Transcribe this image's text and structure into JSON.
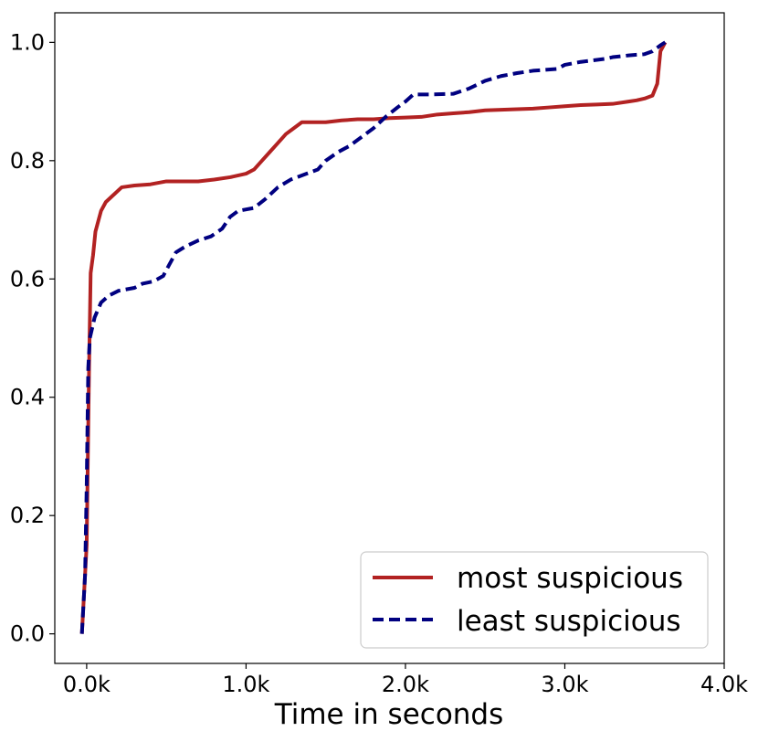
{
  "chart_data": {
    "type": "line",
    "title": "",
    "xlabel": "Time in seconds",
    "ylabel": "",
    "xlim": [
      -200,
      4000
    ],
    "ylim": [
      -0.05,
      1.05
    ],
    "x_ticks": [
      0,
      1000,
      2000,
      3000,
      4000
    ],
    "x_tick_labels": [
      "0.0k",
      "1.0k",
      "2.0k",
      "3.0k",
      "4.0k"
    ],
    "y_ticks": [
      0.0,
      0.2,
      0.4,
      0.6,
      0.8,
      1.0
    ],
    "y_tick_labels": [
      "0.0",
      "0.2",
      "0.4",
      "0.6",
      "0.8",
      "1.0"
    ],
    "grid": false,
    "legend_position": "lower-right",
    "series": [
      {
        "name": "most suspicious",
        "color": "#b22222",
        "dash": "solid",
        "points": [
          [
            -30,
            0.0
          ],
          [
            0,
            0.15
          ],
          [
            15,
            0.45
          ],
          [
            25,
            0.61
          ],
          [
            40,
            0.64
          ],
          [
            55,
            0.68
          ],
          [
            70,
            0.695
          ],
          [
            90,
            0.715
          ],
          [
            120,
            0.73
          ],
          [
            160,
            0.74
          ],
          [
            220,
            0.755
          ],
          [
            300,
            0.758
          ],
          [
            400,
            0.76
          ],
          [
            500,
            0.765
          ],
          [
            600,
            0.765
          ],
          [
            700,
            0.765
          ],
          [
            800,
            0.768
          ],
          [
            900,
            0.772
          ],
          [
            1000,
            0.778
          ],
          [
            1050,
            0.785
          ],
          [
            1100,
            0.8
          ],
          [
            1150,
            0.815
          ],
          [
            1200,
            0.83
          ],
          [
            1250,
            0.845
          ],
          [
            1300,
            0.855
          ],
          [
            1350,
            0.865
          ],
          [
            1400,
            0.865
          ],
          [
            1500,
            0.865
          ],
          [
            1600,
            0.868
          ],
          [
            1700,
            0.87
          ],
          [
            1800,
            0.87
          ],
          [
            1900,
            0.872
          ],
          [
            2000,
            0.873
          ],
          [
            2100,
            0.874
          ],
          [
            2200,
            0.878
          ],
          [
            2300,
            0.88
          ],
          [
            2400,
            0.882
          ],
          [
            2500,
            0.885
          ],
          [
            2600,
            0.886
          ],
          [
            2700,
            0.887
          ],
          [
            2800,
            0.888
          ],
          [
            2900,
            0.89
          ],
          [
            3000,
            0.892
          ],
          [
            3100,
            0.894
          ],
          [
            3200,
            0.895
          ],
          [
            3300,
            0.896
          ],
          [
            3400,
            0.9
          ],
          [
            3450,
            0.902
          ],
          [
            3500,
            0.905
          ],
          [
            3550,
            0.91
          ],
          [
            3580,
            0.93
          ],
          [
            3600,
            0.985
          ],
          [
            3630,
            1.0
          ]
        ]
      },
      {
        "name": "least suspicious",
        "color": "#000080",
        "dash": "dashed",
        "points": [
          [
            -30,
            0.0
          ],
          [
            -10,
            0.1
          ],
          [
            0,
            0.25
          ],
          [
            10,
            0.45
          ],
          [
            20,
            0.5
          ],
          [
            50,
            0.535
          ],
          [
            90,
            0.56
          ],
          [
            140,
            0.572
          ],
          [
            200,
            0.58
          ],
          [
            300,
            0.585
          ],
          [
            350,
            0.592
          ],
          [
            420,
            0.596
          ],
          [
            480,
            0.605
          ],
          [
            520,
            0.625
          ],
          [
            560,
            0.645
          ],
          [
            620,
            0.655
          ],
          [
            700,
            0.665
          ],
          [
            780,
            0.672
          ],
          [
            850,
            0.685
          ],
          [
            900,
            0.705
          ],
          [
            950,
            0.715
          ],
          [
            1050,
            0.72
          ],
          [
            1120,
            0.735
          ],
          [
            1200,
            0.755
          ],
          [
            1280,
            0.768
          ],
          [
            1350,
            0.775
          ],
          [
            1450,
            0.785
          ],
          [
            1500,
            0.8
          ],
          [
            1580,
            0.815
          ],
          [
            1650,
            0.825
          ],
          [
            1700,
            0.835
          ],
          [
            1800,
            0.855
          ],
          [
            1880,
            0.875
          ],
          [
            1950,
            0.89
          ],
          [
            2000,
            0.9
          ],
          [
            2050,
            0.912
          ],
          [
            2150,
            0.912
          ],
          [
            2300,
            0.913
          ],
          [
            2400,
            0.922
          ],
          [
            2500,
            0.935
          ],
          [
            2600,
            0.943
          ],
          [
            2700,
            0.948
          ],
          [
            2800,
            0.952
          ],
          [
            2950,
            0.955
          ],
          [
            3000,
            0.962
          ],
          [
            3100,
            0.967
          ],
          [
            3250,
            0.972
          ],
          [
            3300,
            0.975
          ],
          [
            3400,
            0.978
          ],
          [
            3500,
            0.98
          ],
          [
            3550,
            0.985
          ],
          [
            3600,
            0.995
          ],
          [
            3630,
            1.0
          ]
        ]
      }
    ]
  }
}
